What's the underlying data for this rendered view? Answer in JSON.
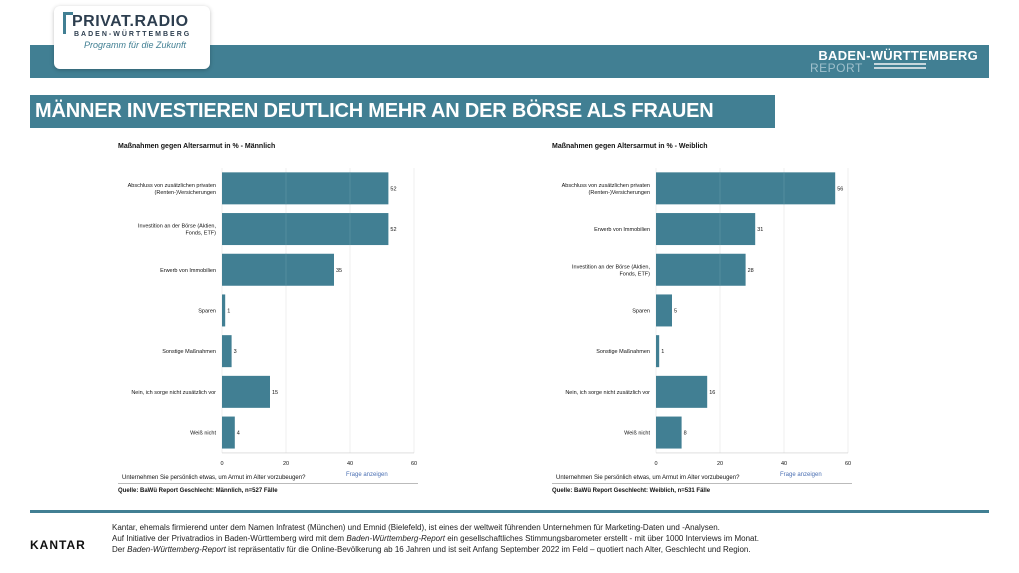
{
  "header": {
    "logo_title": "PRIVAT.RADIO",
    "logo_sub": "BADEN-WÜRTTEMBERG",
    "logo_tag": "Programm für die Zukunft",
    "report_title": "BADEN-WÜRTTEMBERG",
    "report_sub": "REPORT",
    "accent": "#417f93"
  },
  "headline": "MÄNNER INVESTIEREN DEUTLICH MEHR AN DER BÖRSE ALS FRAUEN",
  "chart_data": [
    {
      "type": "bar",
      "orientation": "horizontal",
      "title": "Maßnahmen gegen Altersarmut in % - Männlich",
      "categories": [
        "Abschluss von zusätzlichen privaten (Renten-)Versicherungen",
        "Investition an der Börse (Aktien, Fonds, ETF)",
        "Erwerb von Immobilien",
        "Sparen",
        "Sonstige Maßnahmen",
        "Nein, ich sorge nicht zusätzlich vor",
        "Weiß nicht"
      ],
      "category_lines": [
        [
          "Abschluss von zusätzlichen privaten",
          "(Renten-)Versicherungen"
        ],
        [
          "Investition an der Börse (Aktien,",
          "Fonds, ETF)"
        ],
        [
          "Erwerb von Immobilien"
        ],
        [
          "Sparen"
        ],
        [
          "Sonstige Maßnahmen"
        ],
        [
          "Nein, ich sorge nicht zusätzlich vor"
        ],
        [
          "Weiß nicht"
        ]
      ],
      "values": [
        52,
        52,
        35,
        1,
        3,
        15,
        4
      ],
      "xlim": [
        0,
        60
      ],
      "xticks": [
        0,
        20,
        40,
        60
      ],
      "bar_color": "#417f93",
      "question": "Unternehmen Sie persönlich etwas, um Armut im Alter vorzubeugen?",
      "link": "Frage anzeigen",
      "source": "Quelle: BaWü Report Geschlecht: Männlich, n=527 Fälle"
    },
    {
      "type": "bar",
      "orientation": "horizontal",
      "title": "Maßnahmen gegen Altersarmut in % - Weiblich",
      "categories": [
        "Abschluss von zusätzlichen privaten (Renten-)Versicherungen",
        "Erwerb von Immobilien",
        "Investition an der Börse (Aktien, Fonds, ETF)",
        "Sparen",
        "Sonstige Maßnahmen",
        "Nein, ich sorge nicht zusätzlich vor",
        "Weiß nicht"
      ],
      "category_lines": [
        [
          "Abschluss von zusätzlichen privaten",
          "(Renten-)Versicherungen"
        ],
        [
          "Erwerb von Immobilien"
        ],
        [
          "Investition an der Börse (Aktien,",
          "Fonds, ETF)"
        ],
        [
          "Sparen"
        ],
        [
          "Sonstige Maßnahmen"
        ],
        [
          "Nein, ich sorge nicht zusätzlich vor"
        ],
        [
          "Weiß nicht"
        ]
      ],
      "values": [
        56,
        31,
        28,
        5,
        1,
        16,
        8
      ],
      "xlim": [
        0,
        60
      ],
      "xticks": [
        0,
        20,
        40,
        60
      ],
      "bar_color": "#417f93",
      "question": "Unternehmen Sie persönlich etwas, um Armut im Alter vorzubeugen?",
      "link": "Frage anzeigen",
      "source": "Quelle: BaWü Report Geschlecht: Weiblich, n=531 Fälle"
    }
  ],
  "footer": {
    "brand": "KANTAR",
    "line1": "Kantar, ehemals firmierend unter dem Namen Infratest (München) und Emnid (Bielefeld), ist eines der weltweit führenden Unternehmen für Marketing-Daten und -Analysen.",
    "line2_a": "Auf Initiative der Privatradios in Baden-Württemberg wird mit dem ",
    "line2_em": "Baden-Württemberg-Report",
    "line2_b": " ein gesellschaftliches Stimmungsbarometer erstellt - mit über 1000 Interviews im Monat.",
    "line3_a": "Der ",
    "line3_em": "Baden-Württemberg-Report",
    "line3_b": " ist repräsentativ für die Online-Bevölkerung ab 16 Jahren und ist seit Anfang September 2022 im Feld – quotiert nach Alter, Geschlecht und Region."
  }
}
